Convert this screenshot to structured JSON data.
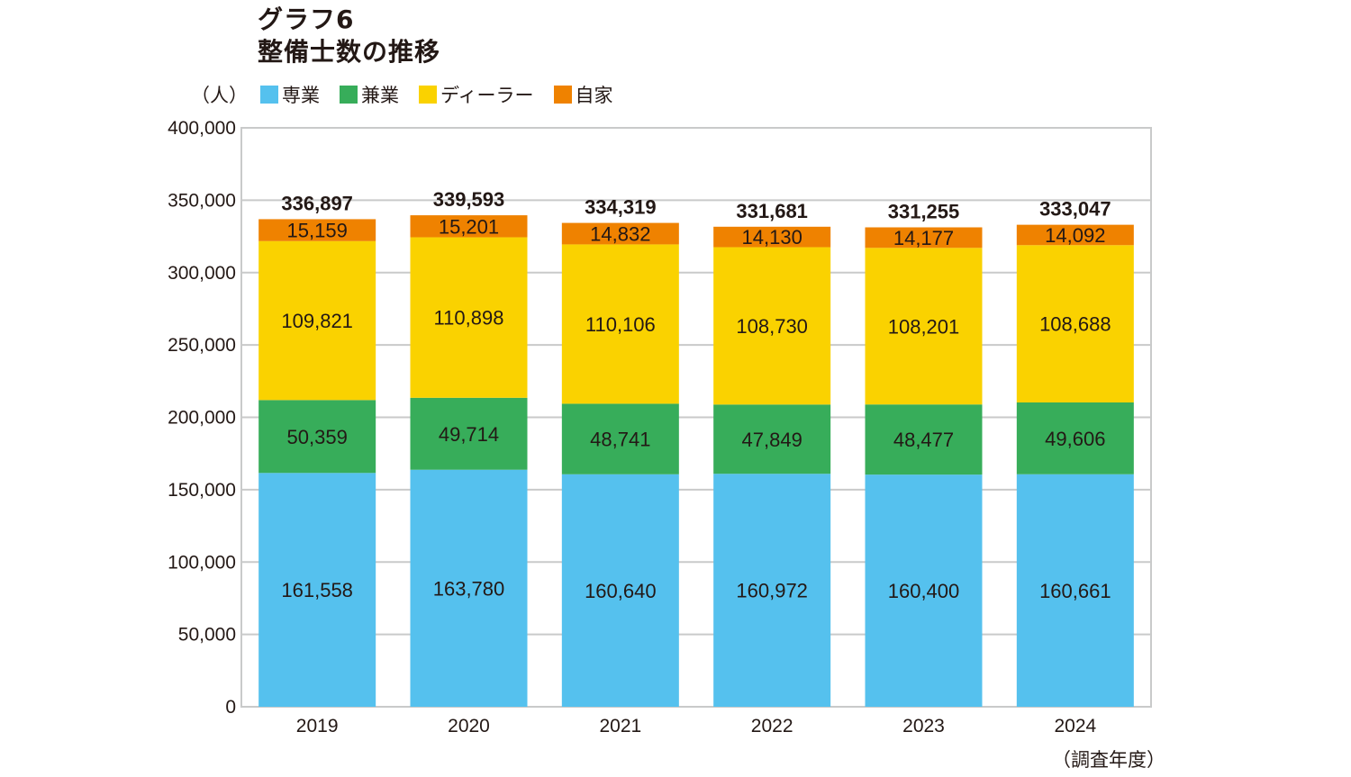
{
  "title_line1": "グラフ6",
  "title_line2": "整備士数の推移",
  "y_unit": "（人）",
  "x_unit": "（調査年度）",
  "chart_data": {
    "type": "bar",
    "stacked": true,
    "categories": [
      "2019",
      "2020",
      "2021",
      "2022",
      "2023",
      "2024"
    ],
    "series": [
      {
        "name": "専業",
        "color": "#55c1ee",
        "values": [
          161558,
          163780,
          160640,
          160972,
          160400,
          160661
        ]
      },
      {
        "name": "兼業",
        "color": "#37ad5a",
        "values": [
          50359,
          49714,
          48741,
          47849,
          48477,
          49606
        ]
      },
      {
        "name": "ディーラー",
        "color": "#fad200",
        "values": [
          109821,
          110898,
          110106,
          108730,
          108201,
          108688
        ]
      },
      {
        "name": "自家",
        "color": "#ef8200",
        "values": [
          15159,
          15201,
          14832,
          14130,
          14177,
          14092
        ]
      }
    ],
    "totals": [
      336897,
      339593,
      334319,
      331681,
      331255,
      333047
    ],
    "ylim": [
      0,
      400000
    ],
    "yticks": [
      0,
      50000,
      100000,
      150000,
      200000,
      250000,
      300000,
      350000,
      400000
    ],
    "grid": true,
    "legend_position": "top"
  }
}
